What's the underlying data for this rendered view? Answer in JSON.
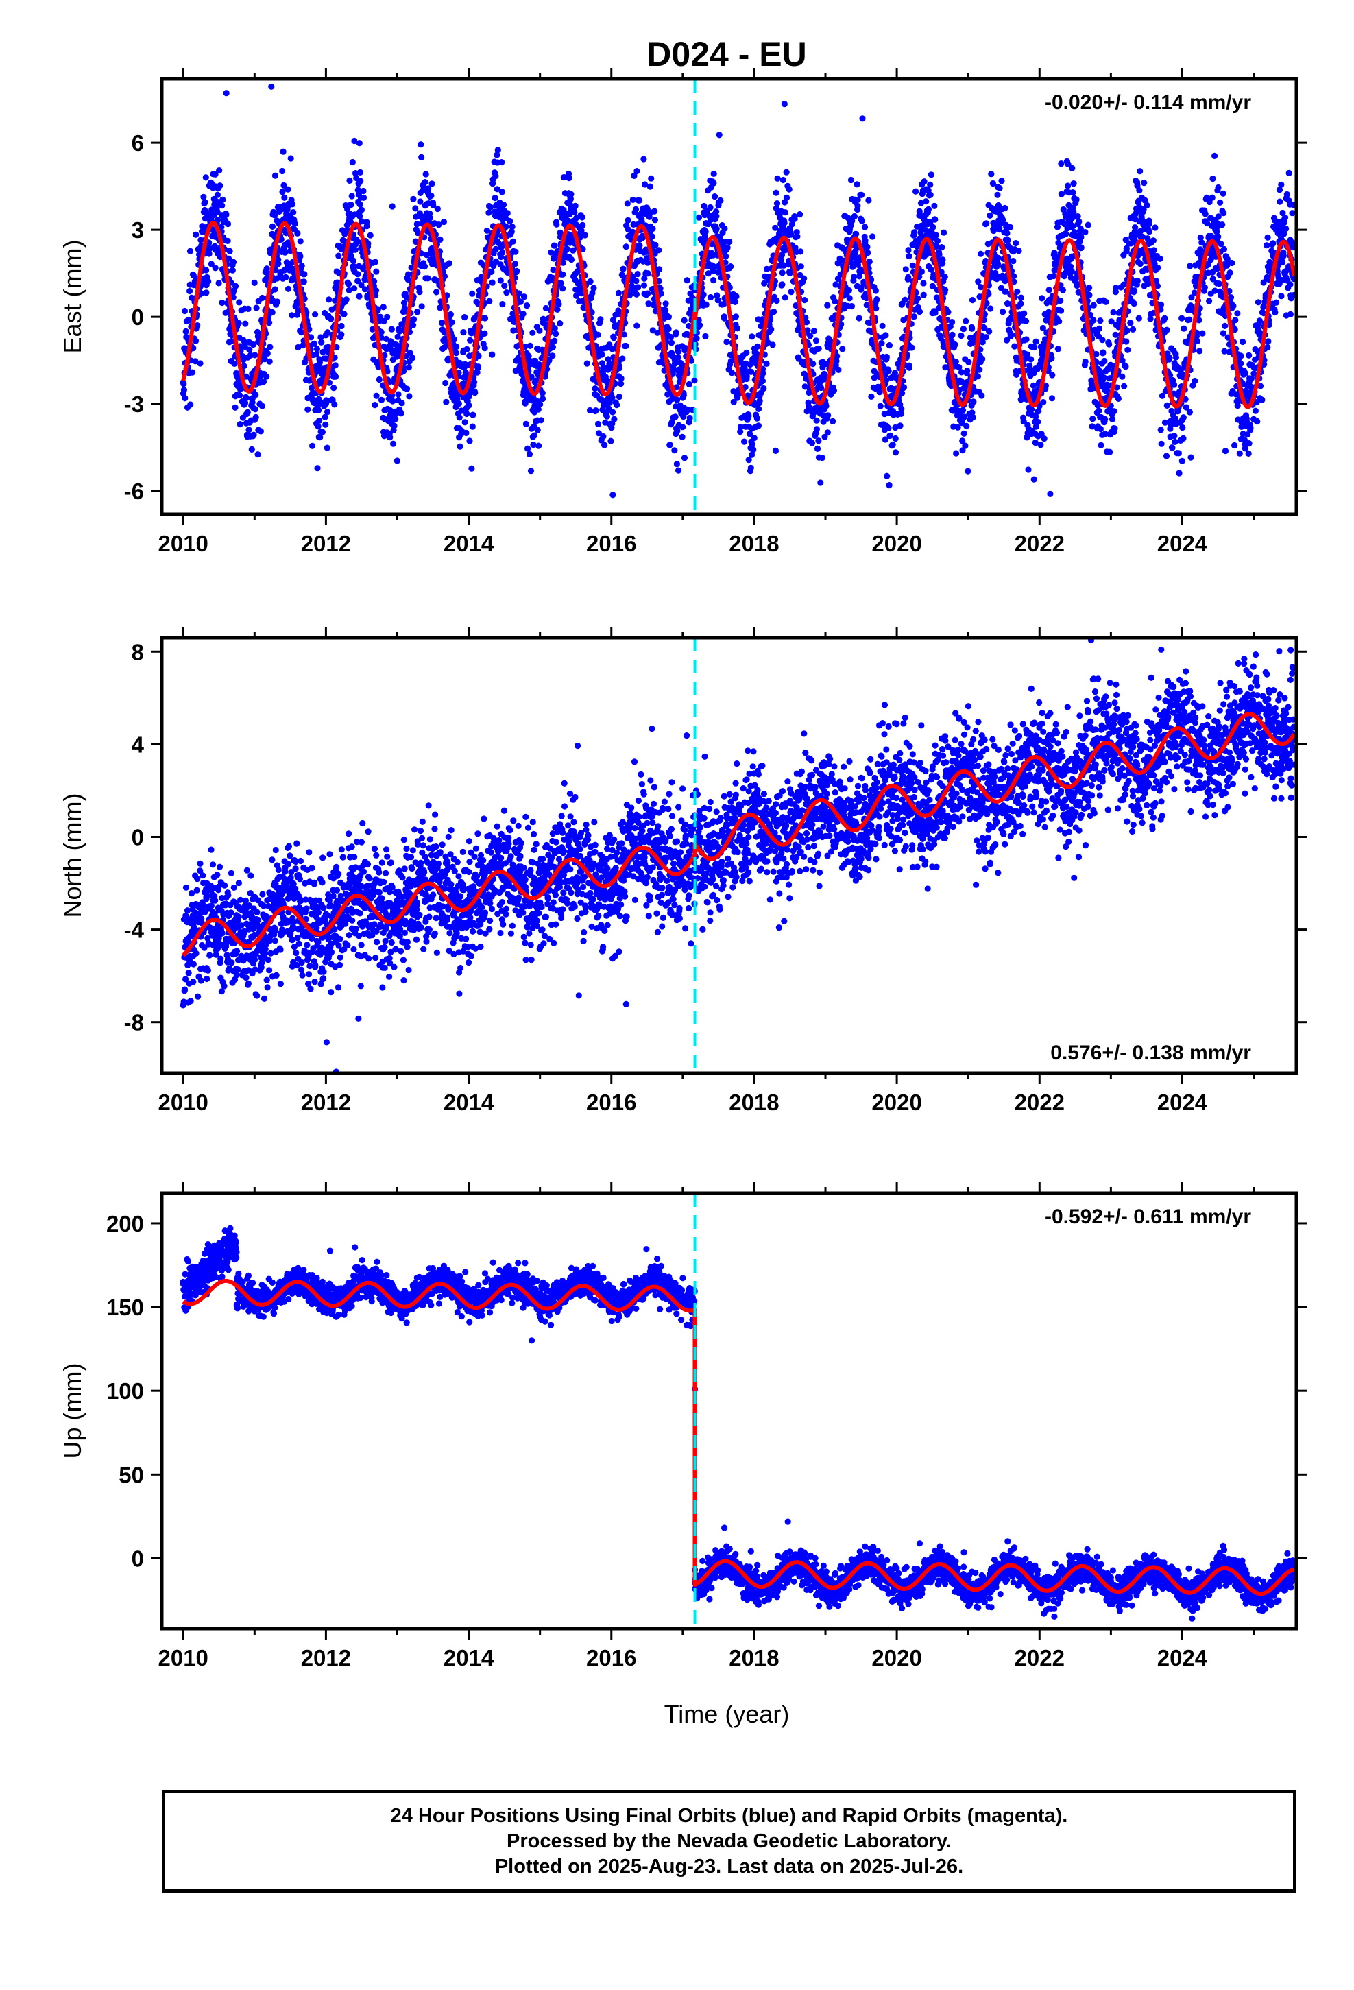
{
  "figure": {
    "title": "D024 - EU",
    "x_axis_label": "Time (year)",
    "caption": [
      "24 Hour Positions Using Final Orbits (blue) and Rapid Orbits (magenta).",
      "Processed by the Nevada Geodetic Laboratory.",
      "Plotted on 2025-Aug-23. Last data on 2025-Jul-26."
    ]
  },
  "colors": {
    "points_final": "#0000ff",
    "model_fit": "#ff0000",
    "event_line": "#00e5ee",
    "frame": "#000000"
  },
  "chart_data": [
    {
      "type": "scatter",
      "component": "East",
      "ylabel": "East (mm)",
      "rate_text": "-0.020+/- 0.114 mm/yr",
      "rate_position": "top-right",
      "xlim": [
        2009.7,
        2025.6
      ],
      "ylim": [
        -6.8,
        8.2
      ],
      "x_ticks": [
        2010,
        2012,
        2014,
        2016,
        2018,
        2020,
        2022,
        2024
      ],
      "y_ticks": [
        -6,
        -3,
        0,
        3,
        6
      ],
      "event_line_x": 2017.17,
      "data_span": [
        2010.0,
        2025.57
      ],
      "series": [
        {
          "kind": "daily-positions",
          "segments": [
            {
              "from": 2010.0,
              "to": 2017.17,
              "trend_at_start": 0.3,
              "trend_rate": 0.0,
              "annual_amplitude": 2.9,
              "scatter_sd": 1.05
            }
          ]
        },
        {
          "kind": "daily-positions",
          "segments": [
            {
              "from": 2017.17,
              "to": 2025.57,
              "trend_at_start": -0.1,
              "trend_rate": 0.0,
              "annual_amplitude": 2.85,
              "scatter_sd": 1.05
            }
          ]
        }
      ],
      "model": {
        "segments": [
          {
            "from": 2010.0,
            "to": 2017.17,
            "offset": 0.35,
            "rate": -0.02,
            "annual_amplitude": 2.9,
            "peak_phase_year_fraction": 0.42
          },
          {
            "from": 2017.17,
            "to": 2025.57,
            "offset": -0.1,
            "rate": -0.02,
            "annual_amplitude": 2.85,
            "peak_phase_year_fraction": 0.42
          }
        ]
      }
    },
    {
      "type": "scatter",
      "component": "North",
      "ylabel": "North (mm)",
      "rate_text": "0.576+/- 0.138 mm/yr",
      "rate_position": "bottom-right",
      "xlim": [
        2009.7,
        2025.6
      ],
      "ylim": [
        -10.2,
        8.6
      ],
      "x_ticks": [
        2010,
        2012,
        2014,
        2016,
        2018,
        2020,
        2022,
        2024
      ],
      "y_ticks": [
        -8,
        -4,
        0,
        4,
        8
      ],
      "event_line_x": 2017.17,
      "data_span": [
        2010.0,
        2025.57
      ],
      "series": [
        {
          "kind": "daily-positions",
          "segments": [
            {
              "from": 2010.0,
              "to": 2017.17,
              "trend_at_start": -4.4,
              "trend_rate": 0.52,
              "annual_amplitude": 0.7,
              "scatter_sd": 1.2
            }
          ]
        },
        {
          "kind": "daily-positions",
          "segments": [
            {
              "from": 2017.17,
              "to": 2025.57,
              "trend_at_start": -0.3,
              "trend_rate": 0.62,
              "annual_amplitude": 0.75,
              "scatter_sd": 1.2
            }
          ]
        }
      ],
      "model": {
        "segments": [
          {
            "from": 2010.0,
            "to": 2017.17,
            "offset": -4.5,
            "rate": 0.52,
            "annual_amplitude": 0.7,
            "peak_phase_year_fraction": 0.42
          },
          {
            "from": 2017.17,
            "to": 2025.57,
            "offset": -0.3,
            "rate": 0.62,
            "annual_amplitude": 0.8,
            "peak_phase_year_fraction": 0.92
          }
        ]
      }
    },
    {
      "type": "scatter",
      "component": "Up",
      "ylabel": "Up (mm)",
      "rate_text": "-0.592+/- 0.611 mm/yr",
      "rate_position": "top-right",
      "xlim": [
        2009.7,
        2025.6
      ],
      "ylim": [
        -42,
        218
      ],
      "x_ticks": [
        2010,
        2012,
        2014,
        2016,
        2018,
        2020,
        2022,
        2024
      ],
      "y_ticks": [
        0,
        50,
        100,
        150,
        200
      ],
      "event_line_x": 2017.17,
      "data_span": [
        2010.0,
        2025.57
      ],
      "series": [
        {
          "kind": "daily-positions",
          "segments": [
            {
              "from": 2010.0,
              "to": 2010.75,
              "trend_at_start": 165,
              "trend_rate": 22.0,
              "annual_amplitude": 4,
              "scatter_sd": 6.5
            },
            {
              "from": 2010.75,
              "to": 2017.17,
              "trend_at_start": 159,
              "trend_rate": 0.0,
              "annual_amplitude": 6.5,
              "scatter_sd": 4.5
            }
          ]
        },
        {
          "kind": "daily-positions",
          "segments": [
            {
              "from": 2017.17,
              "to": 2025.57,
              "trend_at_start": -10,
              "trend_rate": -0.59,
              "annual_amplitude": 7.5,
              "scatter_sd": 4.8
            }
          ]
        }
      ],
      "outliers": [
        [
          2017.17,
          101
        ]
      ],
      "model": {
        "segments": [
          {
            "from": 2010.0,
            "to": 2017.17,
            "offset": 159,
            "rate": -0.59,
            "annual_amplitude": 7,
            "peak_phase_year_fraction": 0.6
          },
          {
            "from": 2017.17,
            "to": 2025.57,
            "offset": -9,
            "rate": -0.59,
            "annual_amplitude": 7.5,
            "peak_phase_year_fraction": 0.6
          }
        ],
        "step_at": 2017.17,
        "step_from": 150,
        "step_to": -17
      }
    }
  ]
}
